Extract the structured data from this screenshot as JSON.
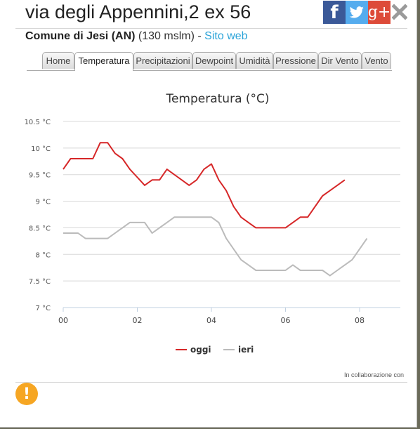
{
  "header": {
    "title": "via degli Appennini,2 ex 56",
    "location_name": "Comune di Jesi (AN)",
    "altitude": "(130 mslm)",
    "separator": "-",
    "website_link": "Sito web"
  },
  "social": {
    "facebook_glyph": "f",
    "googleplus_glyph": "g+",
    "colors": {
      "facebook": "#3b5998",
      "twitter": "#55acee",
      "googleplus": "#dd4b39"
    }
  },
  "tabs": [
    {
      "label": "Home",
      "active": false
    },
    {
      "label": "Temperatura",
      "active": true
    },
    {
      "label": "Precipitazioni",
      "active": false
    },
    {
      "label": "Dewpoint",
      "active": false
    },
    {
      "label": "Umidità",
      "active": false
    },
    {
      "label": "Pressione",
      "active": false
    },
    {
      "label": "Dir Vento",
      "active": false
    },
    {
      "label": "Vento",
      "active": false
    }
  ],
  "chart_data": {
    "type": "line",
    "title": "Temperatura (°C)",
    "xlabel": "",
    "ylabel": "",
    "ylim": [
      7,
      10.5
    ],
    "xlim": [
      0,
      9.1
    ],
    "y_tick_labels": [
      "7 °C",
      "7.5 °C",
      "8 °C",
      "8.5 °C",
      "9 °C",
      "9.5 °C",
      "10 °C",
      "10.5 °C"
    ],
    "y_ticks": [
      7,
      7.5,
      8,
      8.5,
      9,
      9.5,
      10,
      10.5
    ],
    "x_tick_labels": [
      "00",
      "02",
      "04",
      "06",
      "08"
    ],
    "x_ticks": [
      0,
      2,
      4,
      6,
      8
    ],
    "grid": true,
    "legend_position": "bottom-center",
    "series": [
      {
        "name": "oggi",
        "color": "#d62728",
        "points": [
          [
            0,
            9.6
          ],
          [
            0.2,
            9.8
          ],
          [
            0.4,
            9.8
          ],
          [
            0.6,
            9.8
          ],
          [
            0.8,
            9.8
          ],
          [
            1.0,
            10.1
          ],
          [
            1.2,
            10.1
          ],
          [
            1.4,
            9.9
          ],
          [
            1.6,
            9.8
          ],
          [
            1.8,
            9.6
          ],
          [
            2.0,
            9.45
          ],
          [
            2.2,
            9.3
          ],
          [
            2.4,
            9.4
          ],
          [
            2.6,
            9.4
          ],
          [
            2.8,
            9.6
          ],
          [
            3.0,
            9.5
          ],
          [
            3.2,
            9.4
          ],
          [
            3.4,
            9.3
          ],
          [
            3.6,
            9.4
          ],
          [
            3.8,
            9.6
          ],
          [
            4.0,
            9.7
          ],
          [
            4.2,
            9.4
          ],
          [
            4.4,
            9.2
          ],
          [
            4.6,
            8.9
          ],
          [
            4.8,
            8.7
          ],
          [
            5.0,
            8.6
          ],
          [
            5.2,
            8.5
          ],
          [
            5.4,
            8.5
          ],
          [
            5.6,
            8.5
          ],
          [
            5.8,
            8.5
          ],
          [
            6.0,
            8.5
          ],
          [
            6.2,
            8.6
          ],
          [
            6.4,
            8.7
          ],
          [
            6.6,
            8.7
          ],
          [
            6.8,
            8.9
          ],
          [
            7.0,
            9.1
          ],
          [
            7.2,
            9.2
          ],
          [
            7.4,
            9.3
          ],
          [
            7.6,
            9.4
          ]
        ]
      },
      {
        "name": "ieri",
        "color": "#bbbbbb",
        "points": [
          [
            0,
            8.4
          ],
          [
            0.2,
            8.4
          ],
          [
            0.4,
            8.4
          ],
          [
            0.6,
            8.3
          ],
          [
            0.8,
            8.3
          ],
          [
            1.0,
            8.3
          ],
          [
            1.2,
            8.3
          ],
          [
            1.4,
            8.4
          ],
          [
            1.6,
            8.5
          ],
          [
            1.8,
            8.6
          ],
          [
            2.0,
            8.6
          ],
          [
            2.2,
            8.6
          ],
          [
            2.4,
            8.4
          ],
          [
            2.6,
            8.5
          ],
          [
            2.8,
            8.6
          ],
          [
            3.0,
            8.7
          ],
          [
            3.2,
            8.7
          ],
          [
            3.4,
            8.7
          ],
          [
            3.6,
            8.7
          ],
          [
            3.8,
            8.7
          ],
          [
            4.0,
            8.7
          ],
          [
            4.2,
            8.6
          ],
          [
            4.4,
            8.3
          ],
          [
            4.6,
            8.1
          ],
          [
            4.8,
            7.9
          ],
          [
            5.0,
            7.8
          ],
          [
            5.2,
            7.7
          ],
          [
            5.4,
            7.7
          ],
          [
            5.6,
            7.7
          ],
          [
            5.8,
            7.7
          ],
          [
            6.0,
            7.7
          ],
          [
            6.2,
            7.8
          ],
          [
            6.4,
            7.7
          ],
          [
            6.6,
            7.7
          ],
          [
            6.8,
            7.7
          ],
          [
            7.0,
            7.7
          ],
          [
            7.2,
            7.6
          ],
          [
            7.4,
            7.7
          ],
          [
            7.6,
            7.8
          ],
          [
            7.8,
            7.9
          ],
          [
            8.0,
            8.1
          ],
          [
            8.2,
            8.3
          ]
        ]
      }
    ]
  },
  "footer": {
    "credits": "In collaborazione con",
    "alert_glyph": "!",
    "alert_color": "#f6a623"
  }
}
